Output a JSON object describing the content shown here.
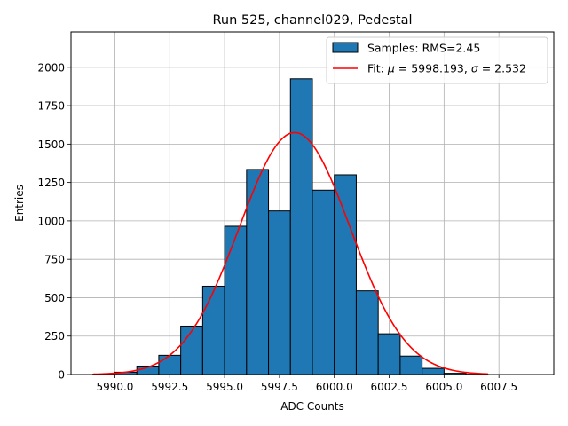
{
  "chart_data": {
    "type": "bar",
    "title": "Run 525, channel029, Pedestal",
    "xlabel": "ADC Counts",
    "ylabel": "Entries",
    "xlim": [
      5988.0,
      6010.0
    ],
    "ylim": [
      0,
      2230
    ],
    "x_ticks": [
      5990.0,
      5992.5,
      5995.0,
      5997.5,
      6000.0,
      6002.5,
      6005.0,
      6007.5
    ],
    "x_tick_labels": [
      "5990.0",
      "5992.5",
      "5995.0",
      "5997.5",
      "6000.0",
      "6002.5",
      "6005.0",
      "6007.5"
    ],
    "y_ticks": [
      0,
      250,
      500,
      750,
      1000,
      1250,
      1500,
      1750,
      2000
    ],
    "y_tick_labels": [
      "0",
      "250",
      "500",
      "750",
      "1000",
      "1250",
      "1500",
      "1750",
      "2000"
    ],
    "grid": true,
    "legend_position": "top-right",
    "colors": {
      "bars": "#1f77b4",
      "bar_edge": "#000000",
      "fit": "#ff0000"
    },
    "histogram": {
      "name": "Samples: RMS=2.45",
      "bin_edges": [
        5989,
        5990,
        5991,
        5992,
        5993,
        5994,
        5995,
        5996,
        5997,
        5998,
        5999,
        6000,
        6001,
        6002,
        6003,
        6004,
        6005,
        6006,
        6007,
        6008,
        6009
      ],
      "counts": [
        2,
        15,
        55,
        125,
        315,
        575,
        965,
        1335,
        1065,
        1925,
        1200,
        1300,
        545,
        265,
        120,
        40,
        8,
        2,
        0,
        0
      ]
    },
    "fit": {
      "legend_prefix": "Fit: ",
      "mu_symbol": "μ",
      "mu_text": " = 5998.193, ",
      "sigma_symbol": "σ",
      "sigma_text": " = 2.532",
      "mu": 5998.193,
      "sigma": 2.532,
      "amplitude": 1575,
      "x_range": [
        5989,
        6007
      ]
    }
  }
}
